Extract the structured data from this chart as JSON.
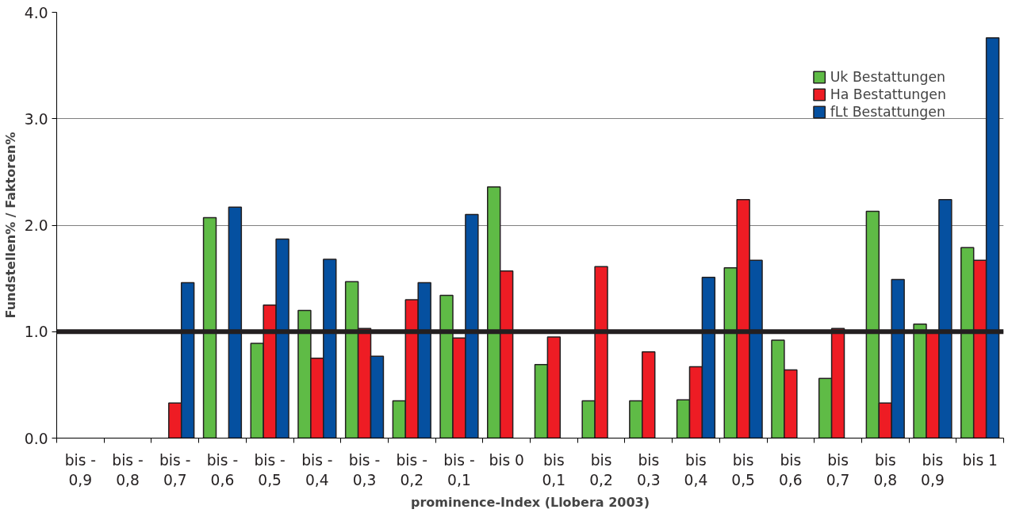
{
  "chart_data": {
    "type": "bar",
    "xlabel": "prominence-Index (Llobera 2003)",
    "ylabel": "Fundstellen% / Faktoren%",
    "categories": [
      "bis -\n0,9",
      "bis -\n0,8",
      "bis -\n0,7",
      "bis -\n0,6",
      "bis -\n0,5",
      "bis -\n0,4",
      "bis -\n0,3",
      "bis -\n0,2",
      "bis -\n0,1",
      "bis 0",
      "bis\n0,1",
      "bis\n0,2",
      "bis\n0,3",
      "bis\n0,4",
      "bis\n0,5",
      "bis\n0,6",
      "bis\n0,7",
      "bis\n0,8",
      "bis\n0,9",
      "bis 1"
    ],
    "series": [
      {
        "name": "Uk Bestattungen",
        "color": "#5fbb46",
        "values": [
          null,
          null,
          null,
          2.07,
          0.89,
          1.2,
          1.47,
          0.35,
          1.34,
          2.36,
          0.69,
          0.35,
          0.35,
          0.36,
          1.6,
          0.92,
          0.56,
          2.13,
          1.07,
          1.79
        ]
      },
      {
        "name": "Ha Bestattungen",
        "color": "#ee1c24",
        "values": [
          null,
          null,
          0.33,
          null,
          1.25,
          0.75,
          1.03,
          1.3,
          0.94,
          1.57,
          0.95,
          1.61,
          0.81,
          0.67,
          2.24,
          0.64,
          1.03,
          0.33,
          1.0,
          1.67
        ]
      },
      {
        "name": "fLt Bestattungen",
        "color": "#0550a0",
        "values": [
          null,
          null,
          1.46,
          2.17,
          1.87,
          1.68,
          0.77,
          1.46,
          2.1,
          null,
          null,
          null,
          null,
          1.51,
          1.67,
          null,
          null,
          1.49,
          2.24,
          3.76
        ]
      }
    ],
    "ylim": [
      0,
      4
    ],
    "yticks": [
      {
        "value": 0,
        "label": "0.0"
      },
      {
        "value": 1,
        "label": "1.0"
      },
      {
        "value": 2,
        "label": "2.0"
      },
      {
        "value": 3,
        "label": "3.0"
      },
      {
        "value": 4,
        "label": "4.0"
      }
    ],
    "ref_lines": [
      {
        "axis": "y",
        "value": 1.0,
        "label": null,
        "color": "#231f20",
        "line_style": "solid"
      }
    ],
    "grid": "y",
    "legend": "top right"
  }
}
